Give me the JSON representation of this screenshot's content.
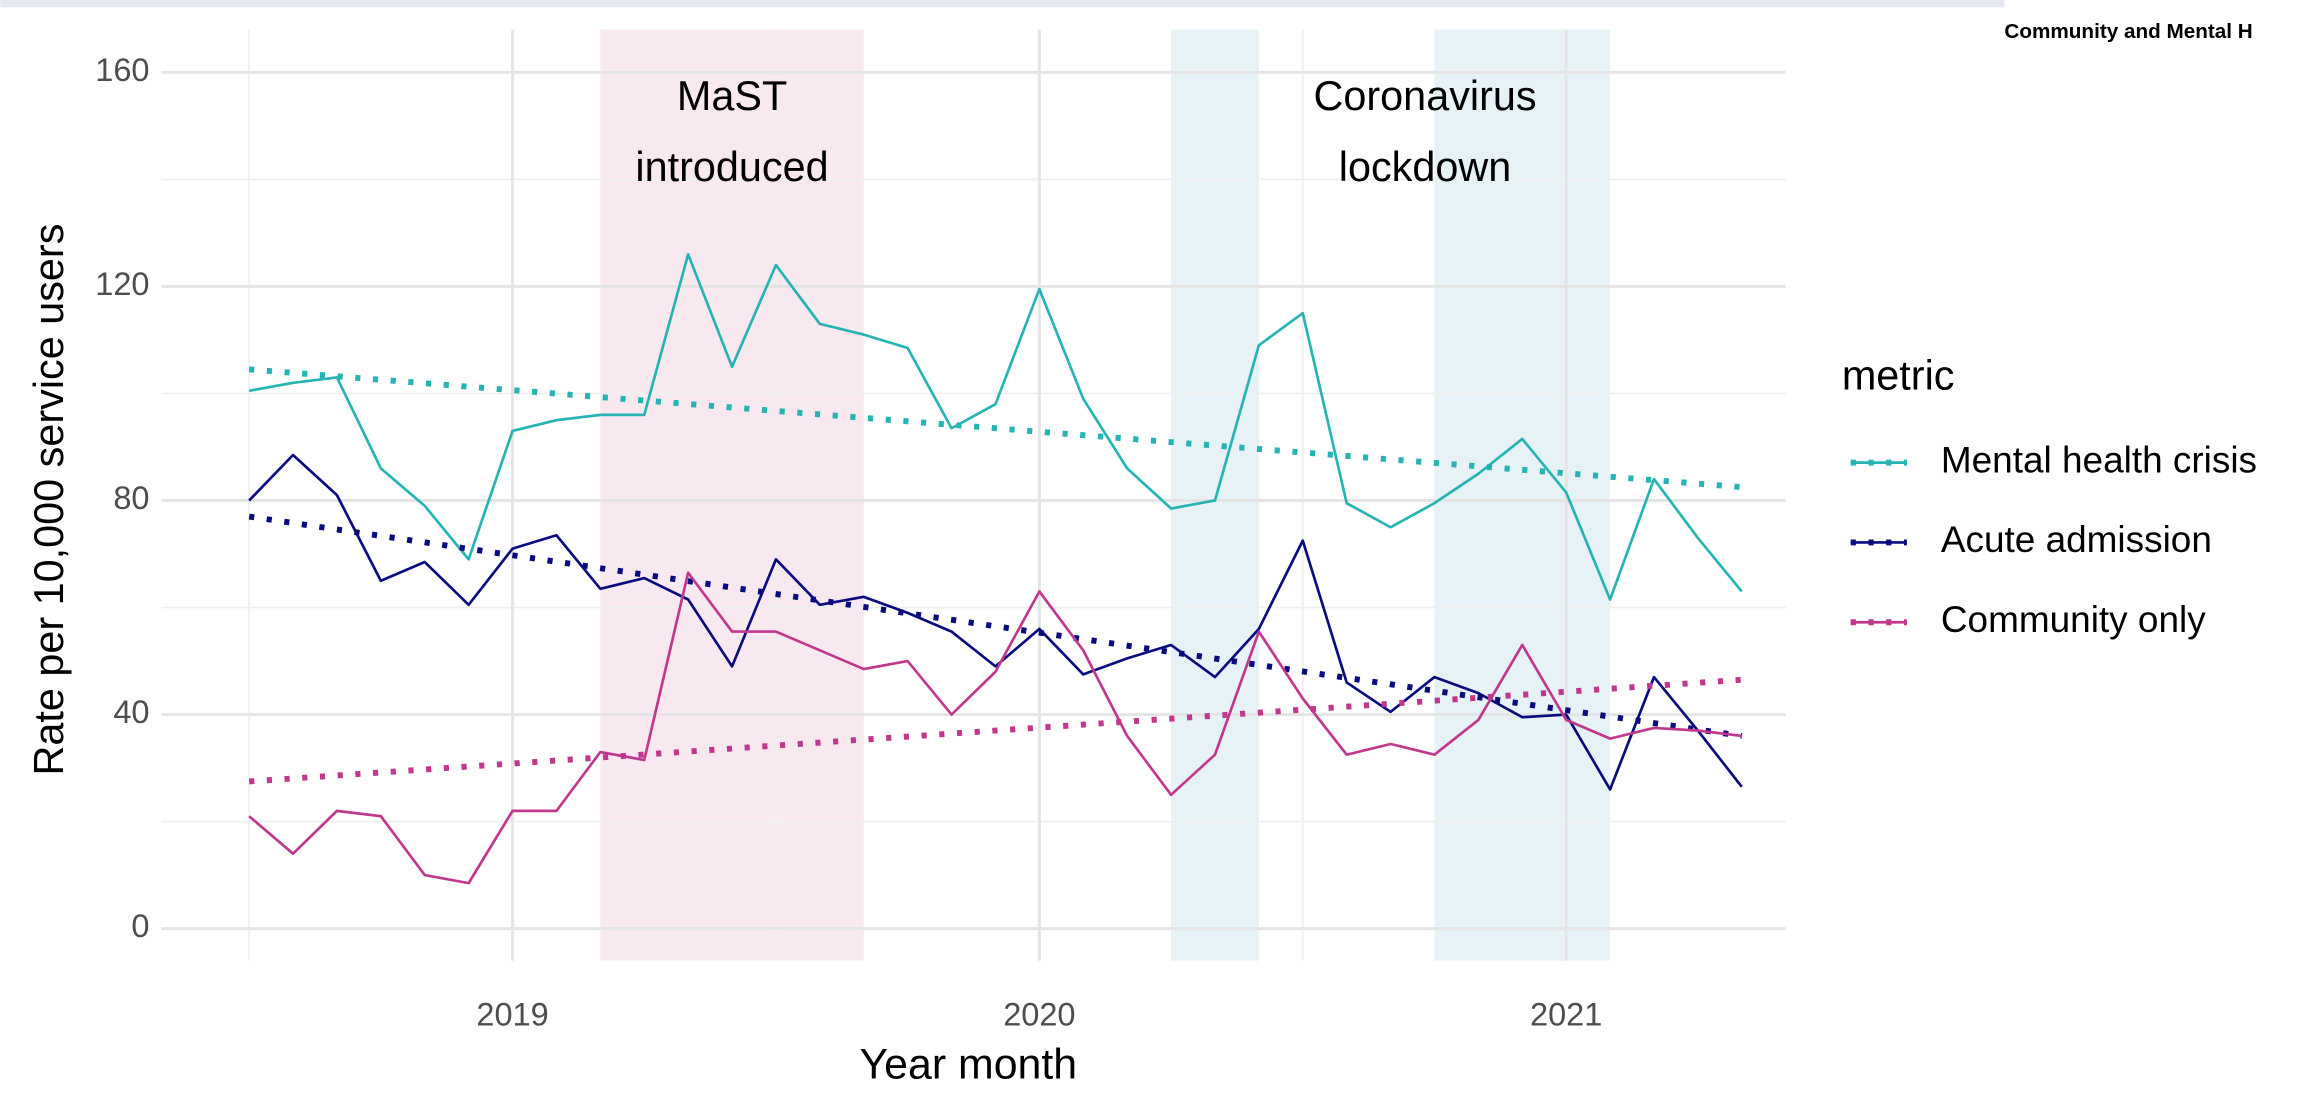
{
  "header": {
    "text": "Community and Mental H"
  },
  "chart_data": {
    "type": "line",
    "x_label": "Year month",
    "y_label": "Rate per 10,000 service users",
    "legend_title": "metric",
    "legend_position": "right",
    "grid": true,
    "x": [
      "2018-07",
      "2018-08",
      "2018-09",
      "2018-10",
      "2018-11",
      "2018-12",
      "2019-01",
      "2019-02",
      "2019-03",
      "2019-04",
      "2019-05",
      "2019-06",
      "2019-07",
      "2019-08",
      "2019-09",
      "2019-10",
      "2019-11",
      "2019-12",
      "2020-01",
      "2020-02",
      "2020-03",
      "2020-04",
      "2020-05",
      "2020-06",
      "2020-07",
      "2020-08",
      "2020-09",
      "2020-10",
      "2020-11",
      "2020-12",
      "2021-01",
      "2021-02",
      "2021-03",
      "2021-04",
      "2021-05"
    ],
    "xlim": [
      "2018-05",
      "2021-06"
    ],
    "xticks": [
      {
        "value": "2019-01",
        "label": "2019"
      },
      {
        "value": "2020-01",
        "label": "2020"
      },
      {
        "value": "2021-01",
        "label": "2021"
      }
    ],
    "xminor": [
      "2018-07",
      "2019-07",
      "2020-07"
    ],
    "ylim": [
      -6,
      168
    ],
    "yticks": [
      0,
      40,
      80,
      120,
      160
    ],
    "yminor": [
      20,
      60,
      100,
      140
    ],
    "regions": [
      {
        "start": "2019-03",
        "end": "2019-09",
        "color": "#f8e9f1"
      },
      {
        "start": "2020-04",
        "end": "2020-06",
        "color": "#e6f2f5"
      },
      {
        "start": "2020-10",
        "end": "2021-02",
        "color": "#e6f2f5"
      }
    ],
    "annotations": [
      [
        "MaST",
        "introduced"
      ],
      [
        "Coronavirus",
        "lockdown"
      ]
    ],
    "series": [
      {
        "name": "Mental health crisis",
        "color": "#26b3b3",
        "values": [
          100.5,
          102,
          103,
          86,
          79,
          69,
          93,
          95,
          96,
          96,
          126,
          105,
          124,
          113,
          111,
          108.5,
          93.5,
          98,
          119.5,
          99,
          86,
          78.5,
          80,
          109,
          115,
          79.5,
          75,
          79.5,
          85,
          91.5,
          81.5,
          61.5,
          84,
          73,
          63
        ],
        "trend": {
          "x": [
            "2018-07",
            "2021-05"
          ],
          "values": [
            104.5,
            82.5
          ]
        }
      },
      {
        "name": "Acute admission",
        "color": "#0b0b80",
        "values": [
          80,
          88.5,
          81,
          65,
          68.5,
          60.5,
          71,
          73.5,
          63.5,
          65.5,
          61.5,
          49,
          69,
          60.5,
          62,
          59,
          55.5,
          49,
          56,
          47.5,
          50.5,
          53,
          47,
          56,
          72.5,
          46,
          40.5,
          47,
          44,
          39.5,
          40,
          26,
          47,
          37,
          26.5
        ],
        "trend": {
          "x": [
            "2018-07",
            "2021-05"
          ],
          "values": [
            77,
            36
          ]
        }
      },
      {
        "name": "Community only",
        "color": "#c2378e",
        "values": [
          21,
          14,
          22,
          21,
          10,
          8.5,
          22,
          22,
          33,
          31.5,
          66.5,
          55.5,
          55.5,
          52,
          48.5,
          50,
          40,
          48,
          63,
          52,
          36,
          25,
          32.5,
          55.5,
          43,
          32.5,
          34.5,
          32.5,
          39,
          53,
          39,
          35.5,
          37.5,
          37,
          36
        ],
        "trend": {
          "x": [
            "2018-07",
            "2021-05"
          ],
          "values": [
            27.5,
            46.5
          ]
        }
      }
    ]
  }
}
